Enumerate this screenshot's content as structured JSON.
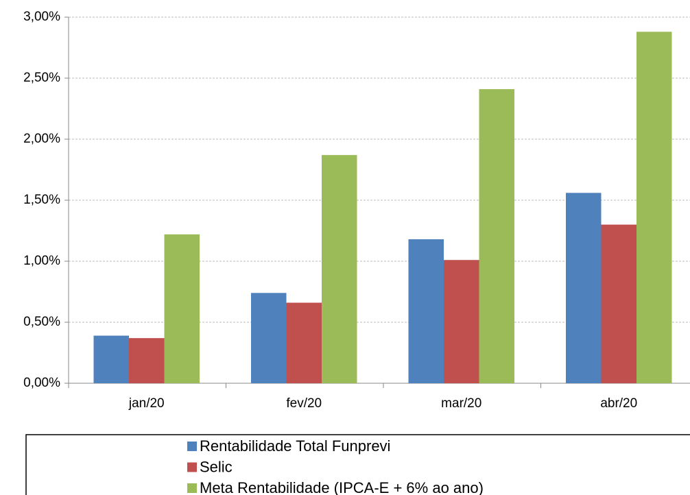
{
  "chart_data": {
    "type": "bar",
    "categories": [
      "jan/20",
      "fev/20",
      "mar/20",
      "abr/20"
    ],
    "series": [
      {
        "name": "Rentabilidade Total Funprevi",
        "color": "#4f81bd",
        "values": [
          0.39,
          0.74,
          1.18,
          1.56
        ]
      },
      {
        "name": "Selic",
        "color": "#c0504d",
        "values": [
          0.37,
          0.66,
          1.01,
          1.3
        ]
      },
      {
        "name": "Meta Rentabilidade (IPCA-E + 6% ao ano)",
        "color": "#9bbb59",
        "values": [
          1.22,
          1.87,
          2.41,
          2.88
        ]
      }
    ],
    "ylim": [
      0,
      3
    ],
    "yticks": [
      {
        "value": 0,
        "label": "0,00%"
      },
      {
        "value": 0.5,
        "label": "0,50%"
      },
      {
        "value": 1,
        "label": "1,00%"
      },
      {
        "value": 1.5,
        "label": "1,50%"
      },
      {
        "value": 2,
        "label": "2,00%"
      },
      {
        "value": 2.5,
        "label": "2,50%"
      },
      {
        "value": 3,
        "label": "3,00%"
      }
    ],
    "grid": true,
    "legend": "bottom"
  }
}
